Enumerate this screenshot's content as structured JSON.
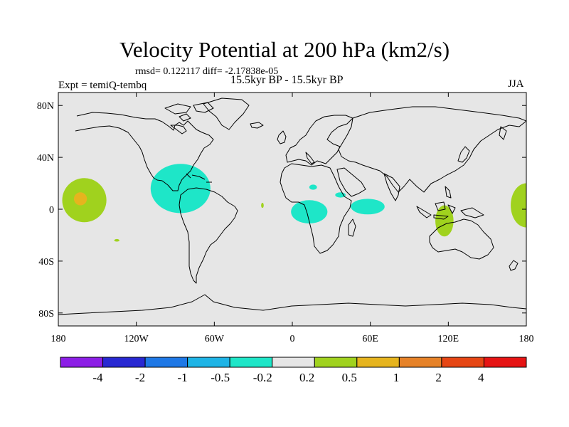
{
  "title": "Velocity Potential at 200 hPa (km2/s)",
  "stats": "rmsd= 0.122117 diff= -2.17838e-05",
  "experiment": "Expt = temiQ-tembq",
  "period": "15.5kyr BP - 15.5kyr BP",
  "season": "JJA",
  "map": {
    "projection": "cylindrical equidistant",
    "lon_range": [
      -180,
      180
    ],
    "lat_range": [
      -90,
      90
    ],
    "background": "#e6e6e6",
    "coastline_color": "#000000"
  },
  "y_ticks": [
    {
      "label": "80N",
      "lat": 80
    },
    {
      "label": "40N",
      "lat": 40
    },
    {
      "label": "0",
      "lat": 0
    },
    {
      "label": "40S",
      "lat": -40
    },
    {
      "label": "80S",
      "lat": -80
    }
  ],
  "x_ticks": [
    {
      "label": "180",
      "lon": -180
    },
    {
      "label": "120W",
      "lon": -120
    },
    {
      "label": "60W",
      "lon": -60
    },
    {
      "label": "0",
      "lon": 0
    },
    {
      "label": "60E",
      "lon": 60
    },
    {
      "label": "120E",
      "lon": 120
    },
    {
      "label": "180",
      "lon": 180
    }
  ],
  "colorbar": {
    "colors": [
      "#8c1ee6",
      "#2828d2",
      "#1e78e6",
      "#1eb4e6",
      "#1ee6c8",
      "#e6e6e6",
      "#a0d21e",
      "#e6b41e",
      "#e68228",
      "#e64614",
      "#e61414"
    ],
    "labels": [
      "-4",
      "-2",
      "-1",
      "-0.5",
      "-0.2",
      "0.2",
      "0.5",
      "1",
      "2",
      "4"
    ]
  },
  "anomalies": [
    {
      "name": "central-pacific-positive",
      "level": "0.5",
      "color": "#a0d21e",
      "lon": -160,
      "lat": 7,
      "rlon": 17,
      "rlat": 17
    },
    {
      "name": "central-pacific-core",
      "level": "1",
      "color": "#e6b41e",
      "lon": -163,
      "lat": 8,
      "rlon": 5,
      "rlat": 5
    },
    {
      "name": "south-pacific-small",
      "level": "0.5",
      "color": "#a0d21e",
      "lon": -135,
      "lat": -24,
      "rlon": 2,
      "rlat": 1
    },
    {
      "name": "caribbean-negative",
      "level": "-0.5",
      "color": "#1ee6c8",
      "lon": -86,
      "lat": 16,
      "rlon": 23,
      "rlat": 19
    },
    {
      "name": "atlantic-small",
      "level": "0.5",
      "color": "#a0d21e",
      "lon": -23,
      "lat": 3,
      "rlon": 1,
      "rlat": 2
    },
    {
      "name": "north-africa-negative",
      "level": "-0.5",
      "color": "#1ee6c8",
      "lon": 16,
      "lat": 17,
      "rlon": 3,
      "rlat": 2
    },
    {
      "name": "sahel-negative",
      "level": "-0.5",
      "color": "#1ee6c8",
      "lon": 37,
      "lat": 11,
      "rlon": 4,
      "rlat": 2
    },
    {
      "name": "central-africa-negative",
      "level": "-0.5",
      "color": "#1ee6c8",
      "lon": 13,
      "lat": -2,
      "rlon": 14,
      "rlat": 9
    },
    {
      "name": "indian-ocean-negative",
      "level": "-0.5",
      "color": "#1ee6c8",
      "lon": 58,
      "lat": 2,
      "rlon": 13,
      "rlat": 6
    },
    {
      "name": "indonesia-positive",
      "level": "0.5",
      "color": "#a0d21e",
      "lon": 117,
      "lat": -9,
      "rlon": 7,
      "rlat": 12
    },
    {
      "name": "dateline-positive",
      "level": "0.5",
      "color": "#a0d21e",
      "lon": 180,
      "lat": 3,
      "rlon": 12,
      "rlat": 17
    }
  ]
}
